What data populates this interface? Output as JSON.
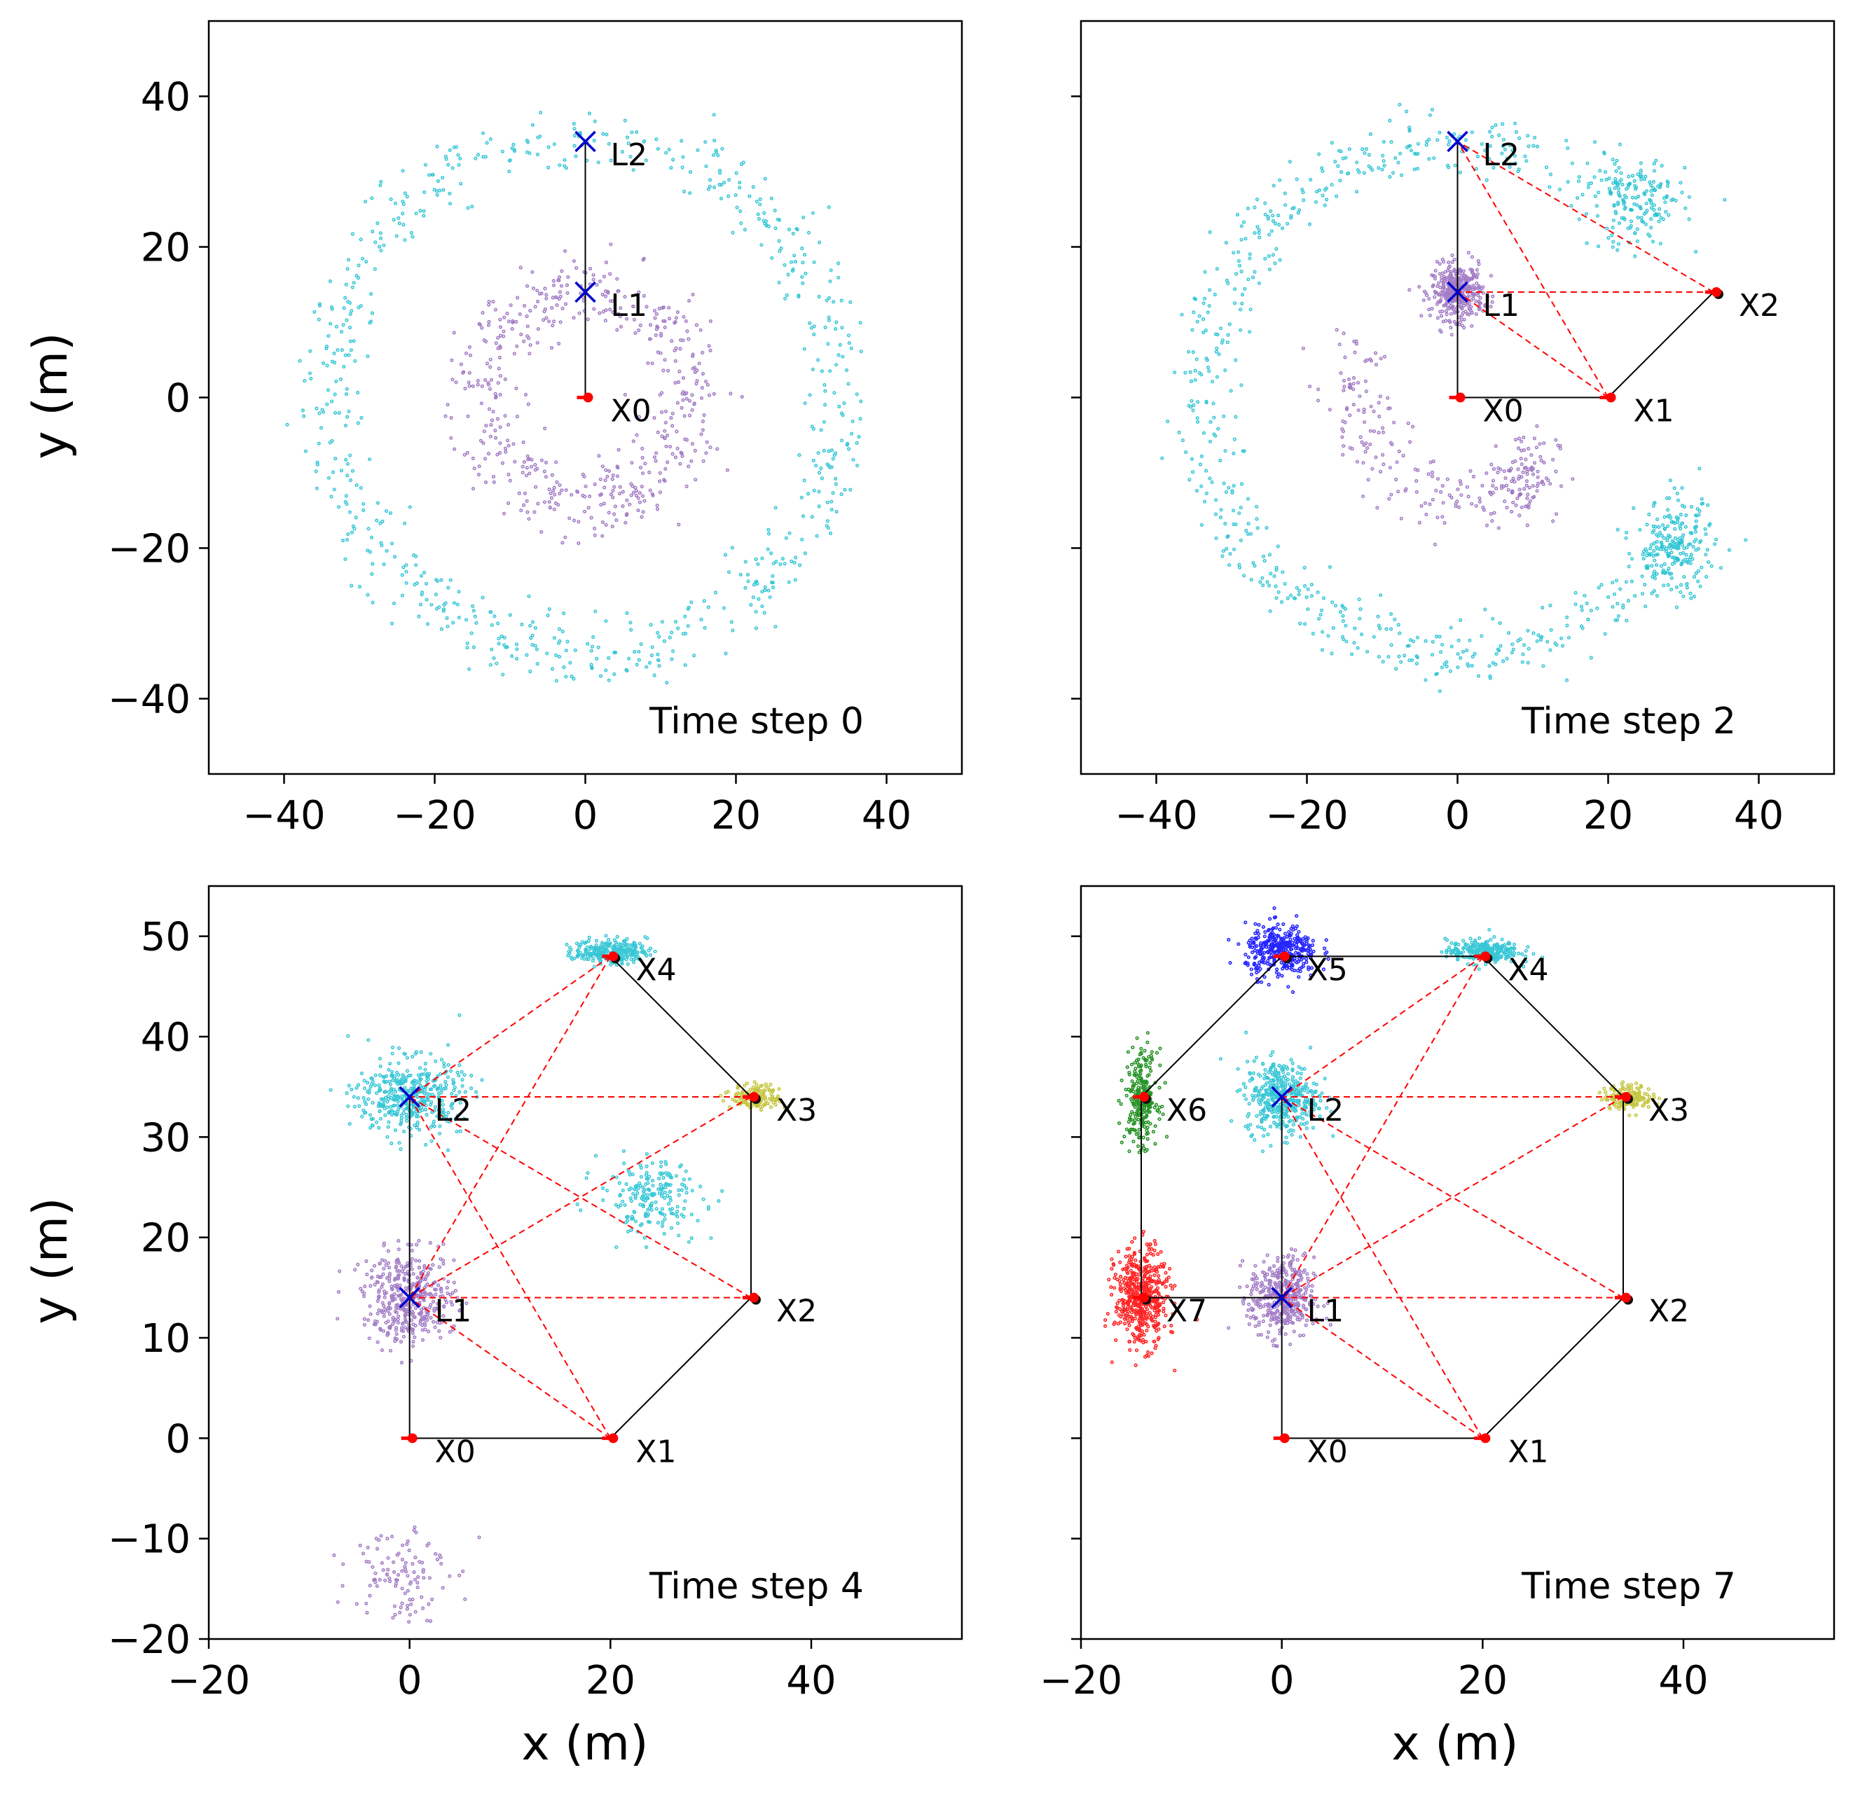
{
  "figure": {
    "xlabel": "x (m)",
    "ylabel": "y (m)"
  },
  "colors": {
    "landmark_marker": "#0000cc",
    "trajectory": "#000000",
    "constraint": "#ff0000",
    "pose_marker": "#ff0000",
    "cloud_L1": "#9467bd",
    "cloud_L2": "#17becf",
    "cloud_X3": "#bcbd22",
    "cloud_X5": "#0000ff",
    "cloud_X6": "#008000",
    "cloud_X7": "#ff0000"
  },
  "chart_data": [
    {
      "type": "scatter",
      "caption": "Time step 0",
      "xlim": [
        -50,
        50
      ],
      "ylim": [
        -50,
        50
      ],
      "xticks": [
        -40,
        -20,
        0,
        20,
        40
      ],
      "yticks": [
        -40,
        -20,
        0,
        20,
        40
      ],
      "xtick_labels": [
        "−40",
        "−20",
        "0",
        "20",
        "40"
      ],
      "ytick_labels": [
        "−40",
        "−20",
        "0",
        "20",
        "40"
      ],
      "show_xticklabels": true,
      "show_yticklabels": true,
      "poses": [
        {
          "label": "X0",
          "x": 0,
          "y": 0
        }
      ],
      "landmarks": [
        {
          "label": "L1",
          "x": 0,
          "y": 14
        },
        {
          "label": "L2",
          "x": 0,
          "y": 34
        }
      ],
      "trajectory": [
        [
          0,
          0
        ],
        [
          0,
          14
        ],
        [
          0,
          34
        ]
      ],
      "constraints": [],
      "clouds": [
        {
          "name": "L1",
          "kind": "ring",
          "cx": 0,
          "cy": 0,
          "r": 14,
          "spread": 2.5,
          "n": 520
        },
        {
          "name": "L2",
          "kind": "ring",
          "cx": 0,
          "cy": 0,
          "r": 34,
          "spread": 2.3,
          "n": 700
        }
      ]
    },
    {
      "type": "scatter",
      "caption": "Time step 2",
      "xlim": [
        -50,
        50
      ],
      "ylim": [
        -50,
        50
      ],
      "xticks": [
        -40,
        -20,
        0,
        20,
        40
      ],
      "yticks": [
        -40,
        -20,
        0,
        20,
        40
      ],
      "xtick_labels": [
        "−40",
        "−20",
        "0",
        "20",
        "40"
      ],
      "ytick_labels": [],
      "show_xticklabels": true,
      "show_yticklabels": false,
      "poses": [
        {
          "label": "X0",
          "x": 0,
          "y": 0
        },
        {
          "label": "X1",
          "x": 20,
          "y": 0
        },
        {
          "label": "X2",
          "x": 34,
          "y": 14
        }
      ],
      "landmarks": [
        {
          "label": "L1",
          "x": 0,
          "y": 14
        },
        {
          "label": "L2",
          "x": 0,
          "y": 34
        }
      ],
      "trajectory": [
        [
          0,
          14
        ],
        [
          0,
          34
        ],
        [
          0,
          0
        ],
        [
          20,
          0
        ],
        [
          34,
          14
        ]
      ],
      "constraints": [
        [
          [
            20,
            0
          ],
          [
            0,
            34
          ]
        ],
        [
          [
            20,
            0
          ],
          [
            0,
            14
          ]
        ],
        [
          [
            34,
            14
          ],
          [
            0,
            14
          ]
        ],
        [
          [
            34,
            14
          ],
          [
            0,
            34
          ]
        ]
      ],
      "clouds": [
        {
          "name": "L1",
          "kind": "blob",
          "cx": 0,
          "cy": 14,
          "sx": 1.7,
          "sy": 1.8,
          "n": 380
        },
        {
          "name": "L1",
          "kind": "arc",
          "cx": 0,
          "cy": 0,
          "r": 14,
          "spread": 2.2,
          "a0": 150,
          "a1": 310,
          "n": 180
        },
        {
          "name": "L1",
          "kind": "blob",
          "cx": 9,
          "cy": -10,
          "sx": 2.2,
          "sy": 3.0,
          "n": 90
        },
        {
          "name": "L2",
          "kind": "arc",
          "cx": 0,
          "cy": 0,
          "r": 34,
          "spread": 2.2,
          "a0": 40,
          "a1": 330,
          "n": 650
        },
        {
          "name": "L2",
          "kind": "blob",
          "cx": 29,
          "cy": -20,
          "sx": 2.6,
          "sy": 3.2,
          "n": 200
        },
        {
          "name": "L2",
          "kind": "blob",
          "cx": 24,
          "cy": 26,
          "sx": 3.2,
          "sy": 3.2,
          "n": 140
        }
      ]
    },
    {
      "type": "scatter",
      "caption": "Time step 4",
      "xlim": [
        -20,
        55
      ],
      "ylim": [
        -20,
        55
      ],
      "xticks": [
        -20,
        0,
        20,
        40
      ],
      "yticks": [
        -20,
        -10,
        0,
        10,
        20,
        30,
        40,
        50
      ],
      "xtick_labels": [
        "−20",
        "0",
        "20",
        "40"
      ],
      "ytick_labels": [
        "−20",
        "−10",
        "0",
        "10",
        "20",
        "30",
        "40",
        "50"
      ],
      "show_xticklabels": true,
      "show_yticklabels": true,
      "poses": [
        {
          "label": "X0",
          "x": 0,
          "y": 0
        },
        {
          "label": "X1",
          "x": 20,
          "y": 0
        },
        {
          "label": "X2",
          "x": 34,
          "y": 14
        },
        {
          "label": "X3",
          "x": 34,
          "y": 34
        },
        {
          "label": "X4",
          "x": 20,
          "y": 48
        }
      ],
      "landmarks": [
        {
          "label": "L1",
          "x": 0,
          "y": 14
        },
        {
          "label": "L2",
          "x": 0,
          "y": 34
        }
      ],
      "trajectory": [
        [
          0,
          14
        ],
        [
          0,
          34
        ],
        [
          0,
          0
        ],
        [
          20,
          0
        ],
        [
          34,
          14
        ],
        [
          34,
          34
        ],
        [
          20,
          48
        ]
      ],
      "constraints": [
        [
          [
            20,
            0
          ],
          [
            0,
            34
          ]
        ],
        [
          [
            20,
            0
          ],
          [
            0,
            14
          ]
        ],
        [
          [
            34,
            14
          ],
          [
            0,
            14
          ]
        ],
        [
          [
            34,
            14
          ],
          [
            0,
            34
          ]
        ],
        [
          [
            34,
            34
          ],
          [
            0,
            14
          ]
        ],
        [
          [
            34,
            34
          ],
          [
            0,
            34
          ]
        ],
        [
          [
            20,
            48
          ],
          [
            0,
            14
          ]
        ],
        [
          [
            20,
            48
          ],
          [
            0,
            34
          ]
        ]
      ],
      "clouds": [
        {
          "name": "L1",
          "kind": "blob",
          "cx": 0,
          "cy": 14,
          "sx": 2.3,
          "sy": 2.2,
          "n": 420
        },
        {
          "name": "L1",
          "kind": "blob",
          "cx": -1,
          "cy": -13,
          "sx": 2.4,
          "sy": 2.6,
          "n": 110
        },
        {
          "name": "L2",
          "kind": "blob",
          "cx": 0,
          "cy": 34,
          "sx": 2.6,
          "sy": 1.9,
          "n": 420
        },
        {
          "name": "L2",
          "kind": "blob",
          "cx": 24,
          "cy": 24,
          "sx": 2.6,
          "sy": 1.8,
          "n": 200
        },
        {
          "name": "L2",
          "kind": "blob",
          "cx": 20,
          "cy": 48.5,
          "sx": 1.8,
          "sy": 0.6,
          "n": 260
        },
        {
          "name": "X3",
          "kind": "blob",
          "cx": 34.5,
          "cy": 34,
          "sx": 1.2,
          "sy": 0.6,
          "n": 160
        }
      ]
    },
    {
      "type": "scatter",
      "caption": "Time step 7",
      "xlim": [
        -20,
        55
      ],
      "ylim": [
        -20,
        55
      ],
      "xticks": [
        -20,
        0,
        20,
        40
      ],
      "yticks": [
        -20,
        -10,
        0,
        10,
        20,
        30,
        40,
        50
      ],
      "xtick_labels": [
        "−20",
        "0",
        "20",
        "40"
      ],
      "ytick_labels": [],
      "show_xticklabels": true,
      "show_yticklabels": false,
      "poses": [
        {
          "label": "X0",
          "x": 0,
          "y": 0
        },
        {
          "label": "X1",
          "x": 20,
          "y": 0
        },
        {
          "label": "X2",
          "x": 34,
          "y": 14
        },
        {
          "label": "X3",
          "x": 34,
          "y": 34
        },
        {
          "label": "X4",
          "x": 20,
          "y": 48
        },
        {
          "label": "X5",
          "x": 0,
          "y": 48
        },
        {
          "label": "X6",
          "x": -14,
          "y": 34
        },
        {
          "label": "X7",
          "x": -14,
          "y": 14
        }
      ],
      "landmarks": [
        {
          "label": "L1",
          "x": 0,
          "y": 14
        },
        {
          "label": "L2",
          "x": 0,
          "y": 34
        }
      ],
      "trajectory": [
        [
          0,
          14
        ],
        [
          0,
          34
        ],
        [
          0,
          0
        ],
        [
          20,
          0
        ],
        [
          34,
          14
        ],
        [
          34,
          34
        ],
        [
          20,
          48
        ],
        [
          0,
          48
        ],
        [
          -14,
          34
        ],
        [
          -14,
          14
        ],
        [
          0,
          14
        ]
      ],
      "constraints": [
        [
          [
            20,
            0
          ],
          [
            0,
            34
          ]
        ],
        [
          [
            20,
            0
          ],
          [
            0,
            14
          ]
        ],
        [
          [
            34,
            14
          ],
          [
            0,
            14
          ]
        ],
        [
          [
            34,
            14
          ],
          [
            0,
            34
          ]
        ],
        [
          [
            34,
            34
          ],
          [
            0,
            14
          ]
        ],
        [
          [
            34,
            34
          ],
          [
            0,
            34
          ]
        ],
        [
          [
            20,
            48
          ],
          [
            0,
            14
          ]
        ],
        [
          [
            20,
            48
          ],
          [
            0,
            34
          ]
        ]
      ],
      "clouds": [
        {
          "name": "L1",
          "kind": "blob",
          "cx": 0,
          "cy": 14,
          "sx": 1.6,
          "sy": 2.0,
          "n": 420
        },
        {
          "name": "L2",
          "kind": "blob",
          "cx": 0,
          "cy": 34,
          "sx": 1.8,
          "sy": 1.8,
          "n": 420
        },
        {
          "name": "L2",
          "kind": "blob",
          "cx": 20,
          "cy": 48.5,
          "sx": 1.8,
          "sy": 0.6,
          "n": 260
        },
        {
          "name": "X3",
          "kind": "blob",
          "cx": 34.5,
          "cy": 34,
          "sx": 1.2,
          "sy": 0.6,
          "n": 160
        },
        {
          "name": "X5",
          "kind": "blob",
          "cx": 0,
          "cy": 48.5,
          "sx": 1.8,
          "sy": 1.3,
          "n": 360
        },
        {
          "name": "X6",
          "kind": "blob",
          "cx": -14,
          "cy": 34,
          "sx": 0.8,
          "sy": 2.3,
          "n": 260
        },
        {
          "name": "X7",
          "kind": "blob",
          "cx": -14,
          "cy": 14,
          "sx": 1.3,
          "sy": 2.4,
          "n": 520
        }
      ]
    }
  ]
}
